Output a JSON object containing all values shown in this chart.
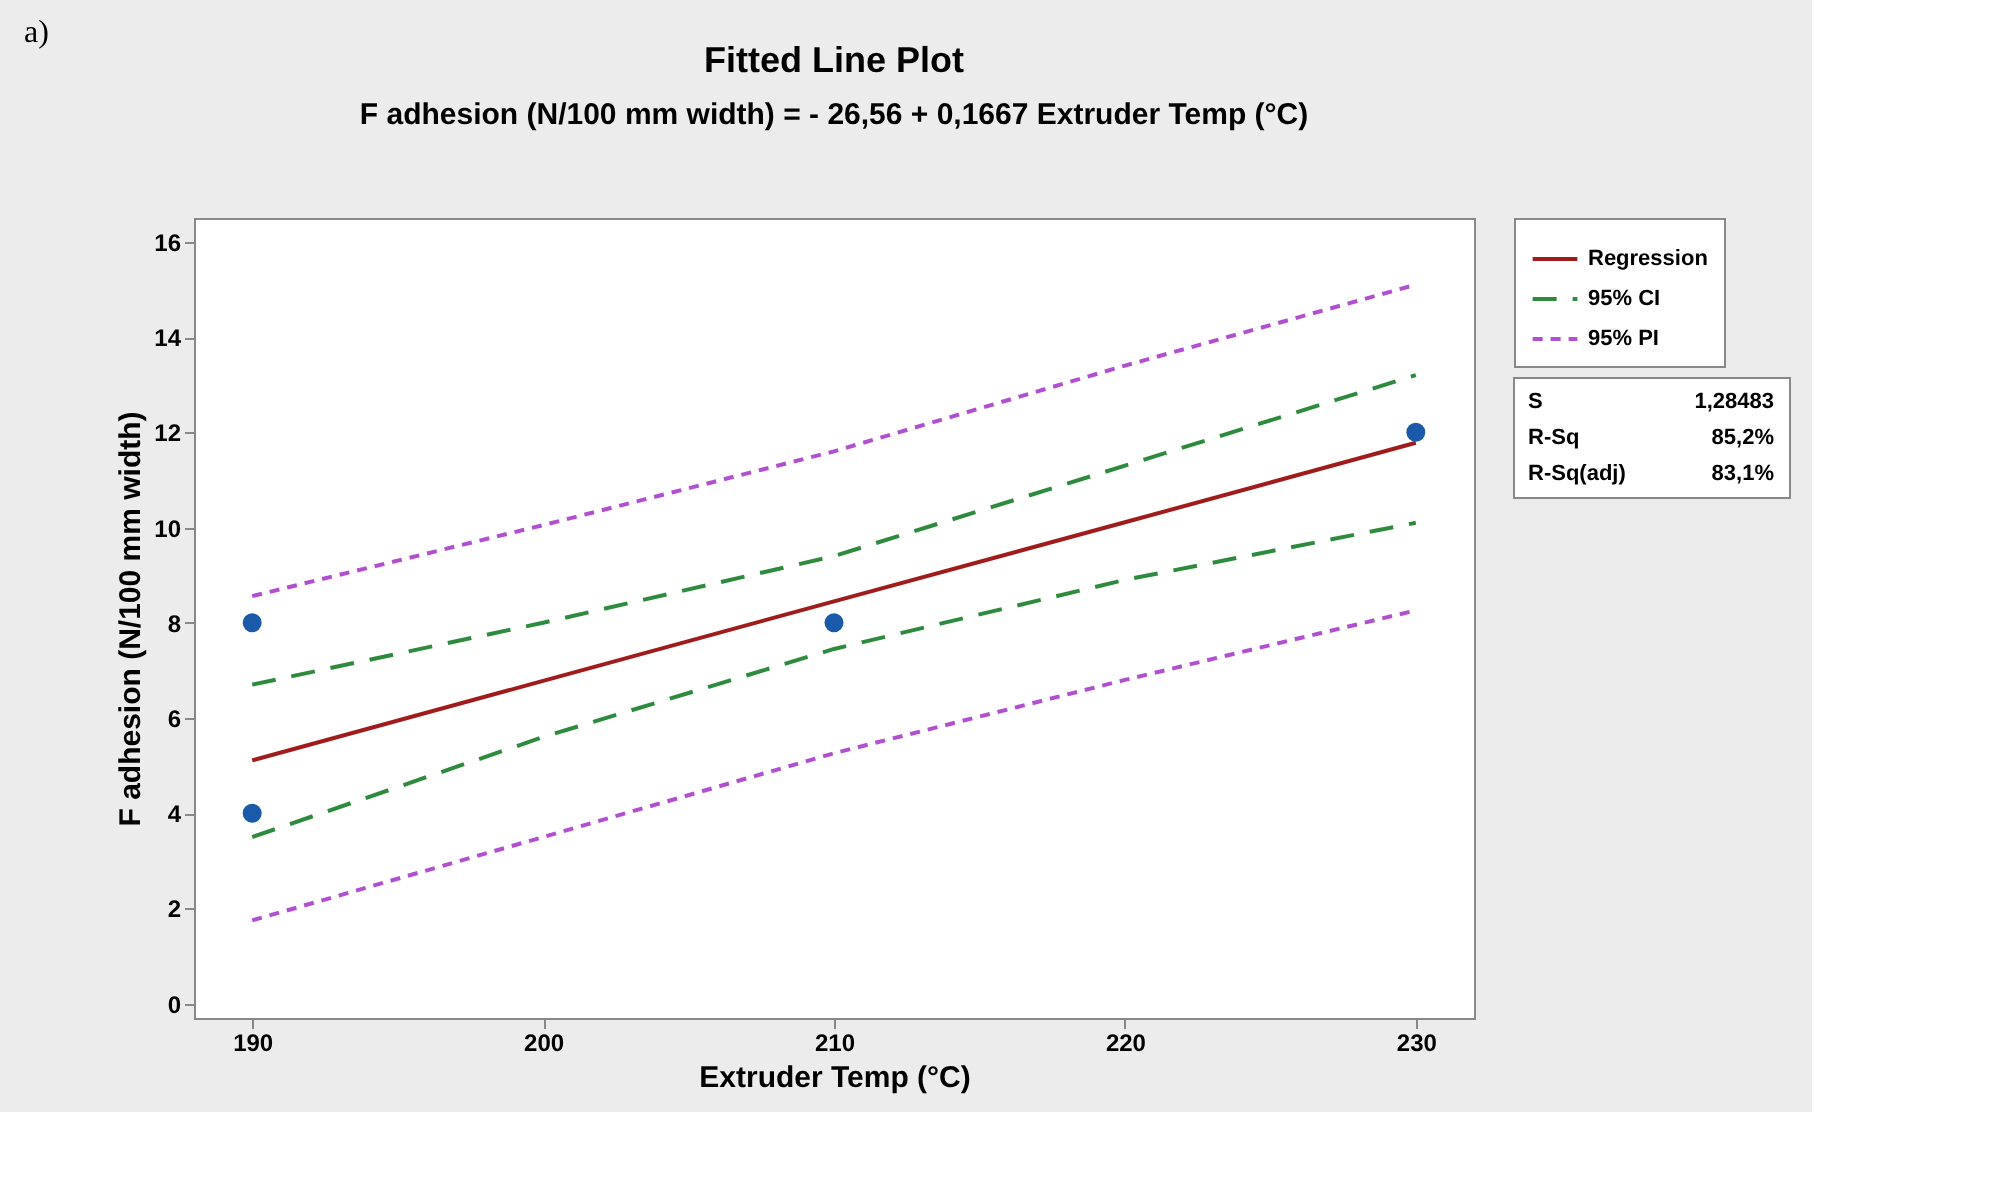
{
  "chart_data": {
    "type": "line",
    "title": "Fitted Line Plot",
    "subtitle": "F adhesion (N/100 mm width) = - 26,56 + 0,1667 Extruder Temp (°C)",
    "xlabel": "Extruder  Temp (°C)",
    "ylabel": "F adhesion (N/100 mm width)",
    "xlim": [
      188,
      232
    ],
    "ylim": [
      -0.3,
      16.5
    ],
    "xticks": [
      190,
      200,
      210,
      220,
      230
    ],
    "yticks": [
      0,
      2,
      4,
      6,
      8,
      10,
      12,
      14,
      16
    ],
    "grid": false,
    "legend": "right",
    "series": [
      {
        "name": "Regression",
        "color": "#a01c1c",
        "line_style": "solid",
        "x": [
          190,
          200,
          210,
          220,
          230
        ],
        "values": [
          5.11,
          6.78,
          8.45,
          10.11,
          11.78
        ]
      },
      {
        "name": "95% CI",
        "color": "#2e8b3e",
        "line_style": "dashed",
        "x": [
          190,
          200,
          210,
          220,
          230
        ],
        "values": [
          6.7,
          8.0,
          9.4,
          11.3,
          13.2
        ]
      },
      {
        "color": "#2e8b3e",
        "line_style": "dashed",
        "x": [
          190,
          200,
          210,
          220,
          230
        ],
        "values": [
          3.5,
          5.6,
          7.45,
          8.9,
          10.1
        ]
      },
      {
        "name": "95% PI",
        "color": "#b050d0",
        "line_style": "dotted",
        "x": [
          190,
          200,
          210,
          220,
          230
        ],
        "values": [
          8.56,
          10.05,
          11.6,
          13.4,
          15.1
        ]
      },
      {
        "color": "#b050d0",
        "line_style": "dotted",
        "x": [
          190,
          200,
          210,
          220,
          230
        ],
        "values": [
          1.75,
          3.5,
          5.26,
          6.8,
          8.26
        ]
      },
      {
        "type": "scatter",
        "color": "#1a5aa8",
        "marker": "circle",
        "x": [
          190,
          190,
          210,
          230
        ],
        "values": [
          4,
          8,
          8,
          12
        ]
      }
    ],
    "annotations": [
      "a)",
      "S",
      "1,28483",
      "R-Sq",
      "85,2%",
      "R-Sq(adj)",
      "83,1%"
    ]
  }
}
